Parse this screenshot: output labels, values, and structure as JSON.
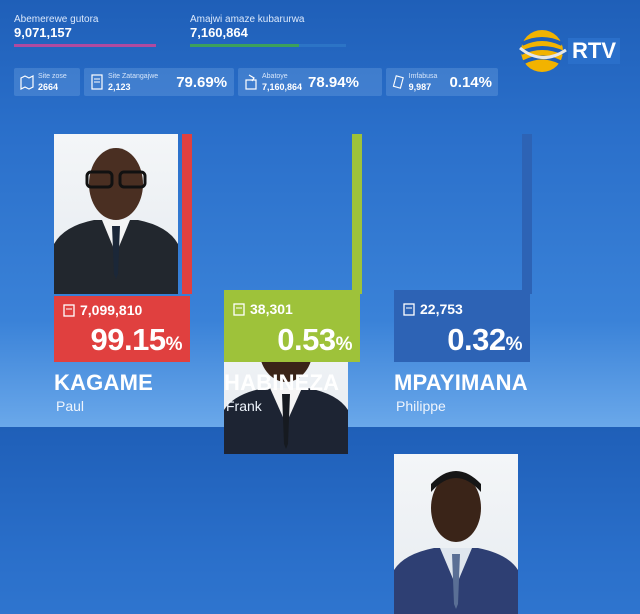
{
  "registered": {
    "label": "Abemerewe gutora",
    "value": "9,071,157",
    "bar_color": "#b04aa0"
  },
  "valid_votes": {
    "label": "Amajwi amaze kubarurwa",
    "value": "7,160,864",
    "bar_color": "#3ca05a"
  },
  "info": [
    {
      "icon": "map-icon",
      "label": "Site zose",
      "value": "2664",
      "pct": ""
    },
    {
      "icon": "document-icon",
      "label": "Site Zatangajwe",
      "value": "2,123",
      "pct": "79.69%"
    },
    {
      "icon": "ballot-icon",
      "label": "Abatoye",
      "value": "7,160,864",
      "pct": "78.94%"
    },
    {
      "icon": "invalid-ballot-icon",
      "label": "Imfabusa",
      "value": "9,987",
      "pct": "0.14%"
    }
  ],
  "logo": {
    "text": "RTV"
  },
  "candidates": [
    {
      "surname": "KAGAME",
      "first": "Paul",
      "votes": "7,099,810",
      "pct_value": "99.15",
      "pct_sign": "%",
      "color": "#e0403f",
      "share": 0.9915
    },
    {
      "surname": "HABINEZA",
      "first": "Frank",
      "votes": "38,301",
      "pct_value": "0.53",
      "pct_sign": "%",
      "color": "#9ec23a",
      "share": 0.0053
    },
    {
      "surname": "MPAYIMANA",
      "first": "Philippe",
      "votes": "22,753",
      "pct_value": "0.32",
      "pct_sign": "%",
      "color": "#2d63b5",
      "share": 0.0032
    }
  ]
}
